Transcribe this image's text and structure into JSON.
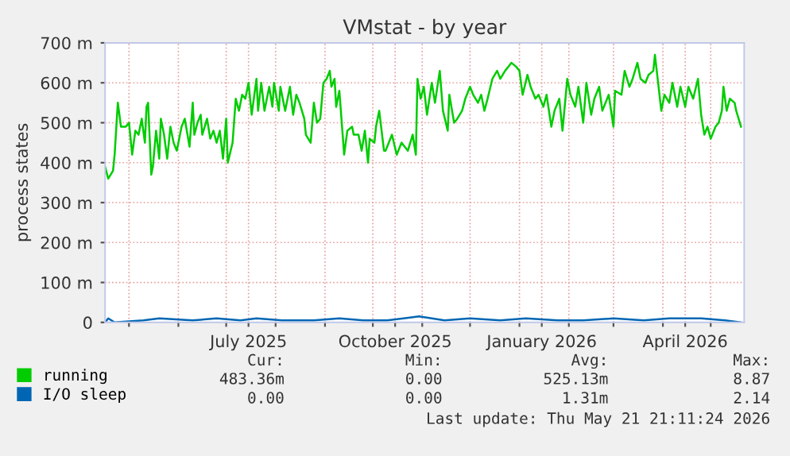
{
  "chart_data": {
    "type": "line",
    "title": "VMstat - by year",
    "ylabel": "process states",
    "xlim": [
      "2025-04-16",
      "2026-05-22"
    ],
    "xticks": [
      {
        "value": "2025-05-01",
        "label": null
      },
      {
        "value": "2025-06-01",
        "label": null
      },
      {
        "value": "2025-07-01",
        "label": null
      },
      {
        "value": "2025-07-15",
        "label": "July 2025"
      },
      {
        "value": "2025-08-01",
        "label": null
      },
      {
        "value": "2025-09-01",
        "label": null
      },
      {
        "value": "2025-10-01",
        "label": null
      },
      {
        "value": "2025-10-15",
        "label": "October 2025"
      },
      {
        "value": "2025-11-01",
        "label": null
      },
      {
        "value": "2025-12-01",
        "label": null
      },
      {
        "value": "2026-01-01",
        "label": null
      },
      {
        "value": "2026-01-15",
        "label": "January 2026"
      },
      {
        "value": "2026-02-01",
        "label": null
      },
      {
        "value": "2026-03-01",
        "label": null
      },
      {
        "value": "2026-04-01",
        "label": null
      },
      {
        "value": "2026-04-15",
        "label": "April 2026"
      },
      {
        "value": "2026-05-01",
        "label": null
      }
    ],
    "ylim": [
      0,
      700
    ],
    "yticks": [
      0,
      {
        "value": 100,
        "label": "100 m"
      },
      {
        "value": 200,
        "label": "200 m"
      },
      {
        "value": 300,
        "label": "300 m"
      },
      {
        "value": 400,
        "label": "400 m"
      },
      {
        "value": 500,
        "label": "500 m"
      },
      {
        "value": 600,
        "label": "600 m"
      },
      {
        "value": 700,
        "label": "700 m"
      }
    ],
    "grid": true,
    "legend": "bottom",
    "series": [
      {
        "name": "running",
        "color": "#00cc00",
        "x": [
          "2025-04-16",
          "2025-04-18",
          "2025-04-21",
          "2025-04-22",
          "2025-04-24",
          "2025-04-26",
          "2025-04-29",
          "2025-05-01",
          "2025-05-03",
          "2025-05-05",
          "2025-05-07",
          "2025-05-09",
          "2025-05-11",
          "2025-05-12",
          "2025-05-13",
          "2025-05-15",
          "2025-05-16",
          "2025-05-18",
          "2025-05-20",
          "2025-05-21",
          "2025-05-23",
          "2025-05-25",
          "2025-05-27",
          "2025-05-29",
          "2025-05-31",
          "2025-06-03",
          "2025-06-05",
          "2025-06-08",
          "2025-06-10",
          "2025-06-11",
          "2025-06-13",
          "2025-06-15",
          "2025-06-16",
          "2025-06-19",
          "2025-06-21",
          "2025-06-23",
          "2025-06-25",
          "2025-06-27",
          "2025-06-29",
          "2025-07-01",
          "2025-07-02",
          "2025-07-05",
          "2025-07-07",
          "2025-07-09",
          "2025-07-11",
          "2025-07-13",
          "2025-07-15",
          "2025-07-17",
          "2025-07-20",
          "2025-07-21",
          "2025-07-23",
          "2025-07-25",
          "2025-07-28",
          "2025-07-30",
          "2025-07-31",
          "2025-08-03",
          "2025-08-04",
          "2025-08-07",
          "2025-08-10",
          "2025-08-12",
          "2025-08-14",
          "2025-08-16",
          "2025-08-19",
          "2025-08-20",
          "2025-08-23",
          "2025-08-25",
          "2025-08-27",
          "2025-08-29",
          "2025-08-31",
          "2025-09-02",
          "2025-09-04",
          "2025-09-05",
          "2025-09-07",
          "2025-09-08",
          "2025-09-10",
          "2025-09-13",
          "2025-09-15",
          "2025-09-18",
          "2025-09-19",
          "2025-09-22",
          "2025-09-24",
          "2025-09-26",
          "2025-09-28",
          "2025-09-29",
          "2025-10-02",
          "2025-10-03",
          "2025-10-05",
          "2025-10-08",
          "2025-10-09",
          "2025-10-13",
          "2025-10-16",
          "2025-10-19",
          "2025-10-23",
          "2025-10-26",
          "2025-10-28",
          "2025-10-29",
          "2025-10-31",
          "2025-11-02",
          "2025-11-04",
          "2025-11-07",
          "2025-11-09",
          "2025-11-12",
          "2025-11-14",
          "2025-11-17",
          "2025-11-18",
          "2025-11-21",
          "2025-11-23",
          "2025-11-26",
          "2025-11-28",
          "2025-12-01",
          "2025-12-03",
          "2025-12-06",
          "2025-12-08",
          "2025-12-10",
          "2025-12-12",
          "2025-12-15",
          "2025-12-18",
          "2025-12-20",
          "2025-12-23",
          "2025-12-27",
          "2025-12-30",
          "2026-01-01",
          "2026-01-03",
          "2026-01-06",
          "2026-01-08",
          "2026-01-11",
          "2026-01-13",
          "2026-01-16",
          "2026-01-18",
          "2026-01-21",
          "2026-01-23",
          "2026-01-26",
          "2026-01-28",
          "2026-01-31",
          "2026-02-02",
          "2026-02-05",
          "2026-02-07",
          "2026-02-10",
          "2026-02-12",
          "2026-02-15",
          "2026-02-17",
          "2026-02-20",
          "2026-02-22",
          "2026-02-26",
          "2026-03-01",
          "2026-03-02",
          "2026-03-06",
          "2026-03-08",
          "2026-03-11",
          "2026-03-13",
          "2026-03-16",
          "2026-03-18",
          "2026-03-21",
          "2026-03-23",
          "2026-03-26",
          "2026-03-27",
          "2026-03-29",
          "2026-03-31",
          "2026-04-02",
          "2026-04-05",
          "2026-04-07",
          "2026-04-10",
          "2026-04-12",
          "2026-04-15",
          "2026-04-17",
          "2026-04-20",
          "2026-04-23",
          "2026-04-25",
          "2026-04-27",
          "2026-04-29",
          "2026-05-01",
          "2026-05-04",
          "2026-05-06",
          "2026-05-08",
          "2026-05-09",
          "2026-05-11",
          "2026-05-13",
          "2026-05-16",
          "2026-05-17",
          "2026-05-20"
        ],
        "values": [
          390,
          360,
          380,
          420,
          550,
          490,
          490,
          500,
          420,
          480,
          470,
          510,
          450,
          540,
          550,
          370,
          390,
          480,
          410,
          510,
          470,
          410,
          490,
          450,
          430,
          490,
          510,
          440,
          550,
          470,
          500,
          520,
          470,
          510,
          460,
          480,
          450,
          480,
          410,
          510,
          400,
          450,
          560,
          530,
          570,
          560,
          600,
          520,
          610,
          530,
          600,
          530,
          590,
          540,
          600,
          530,
          590,
          530,
          590,
          520,
          570,
          550,
          510,
          470,
          450,
          550,
          500,
          510,
          600,
          610,
          630,
          590,
          610,
          540,
          580,
          420,
          480,
          490,
          470,
          470,
          430,
          480,
          400,
          460,
          450,
          490,
          530,
          430,
          430,
          470,
          420,
          450,
          430,
          470,
          420,
          610,
          560,
          590,
          520,
          600,
          550,
          630,
          530,
          480,
          570,
          500,
          510,
          530,
          560,
          590,
          570,
          550,
          570,
          530,
          560,
          610,
          630,
          610,
          630,
          650,
          640,
          630,
          570,
          620,
          590,
          560,
          570,
          540,
          570,
          490,
          530,
          560,
          480,
          610,
          570,
          540,
          590,
          500,
          600,
          520,
          560,
          590,
          530,
          570,
          490,
          580,
          570,
          630,
          590,
          610,
          650,
          610,
          600,
          620,
          630,
          670,
          600,
          530,
          570,
          550,
          600,
          540,
          590,
          540,
          590,
          560,
          610,
          520,
          470,
          490,
          460,
          490,
          500,
          530,
          590,
          530,
          560,
          550,
          530,
          490
        ]
      },
      {
        "name": "I/O sleep",
        "color": "#0066b3",
        "x": [
          "2025-04-16",
          "2025-04-18",
          "2025-04-22",
          "2025-05-10",
          "2025-05-20",
          "2025-06-10",
          "2025-06-25",
          "2025-07-10",
          "2025-07-20",
          "2025-08-05",
          "2025-08-25",
          "2025-09-10",
          "2025-09-25",
          "2025-10-10",
          "2025-10-30",
          "2025-11-15",
          "2025-12-01",
          "2025-12-20",
          "2026-01-05",
          "2026-01-25",
          "2026-02-10",
          "2026-03-01",
          "2026-03-20",
          "2026-04-05",
          "2026-04-25",
          "2026-05-10",
          "2026-05-20"
        ],
        "values": [
          0,
          10,
          0,
          5,
          10,
          5,
          10,
          5,
          10,
          5,
          5,
          10,
          5,
          5,
          15,
          5,
          10,
          5,
          10,
          5,
          5,
          10,
          5,
          10,
          10,
          5,
          0
        ]
      }
    ],
    "annotations": [
      "Cur:",
      "Min:",
      "Avg:",
      "Max:",
      "483.36m",
      "0.00",
      "525.13m",
      "8.87",
      "0.00",
      "0.00",
      "1.31m",
      "2.14",
      "Last update: Thu May 21 21:11:24 2026"
    ]
  }
}
